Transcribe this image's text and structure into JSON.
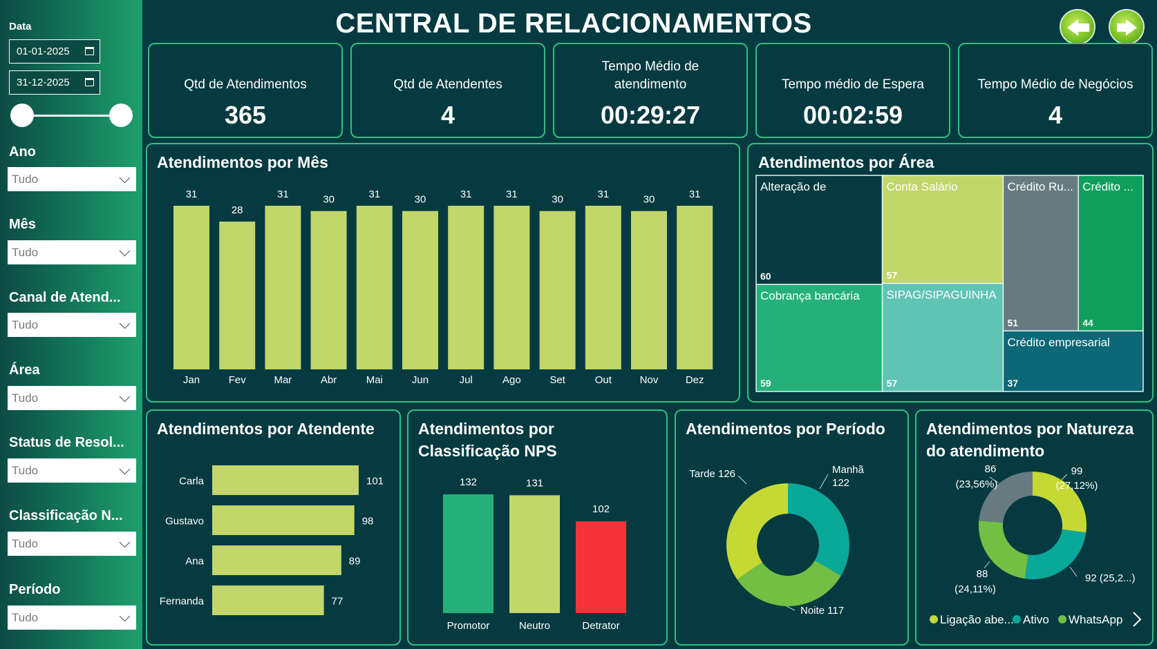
{
  "header": {
    "title": "CENTRAL DE RELACIONAMENTOS"
  },
  "sidebar": {
    "date_label": "Data",
    "date_start": "01-01-2025",
    "date_end": "31-12-2025",
    "filters": [
      {
        "label": "Ano",
        "value": "Tudo"
      },
      {
        "label": "Mês",
        "value": "Tudo"
      },
      {
        "label": "Canal de Atend...",
        "value": "Tudo"
      },
      {
        "label": "Área",
        "value": "Tudo"
      },
      {
        "label": "Status de Resol...",
        "value": "Tudo"
      },
      {
        "label": "Classificação N...",
        "value": "Tudo"
      },
      {
        "label": "Período",
        "value": "Tudo"
      }
    ]
  },
  "kpis": [
    {
      "label": "Qtd de Atendimentos",
      "value": "365"
    },
    {
      "label": "Qtd de Atendentes",
      "value": "4"
    },
    {
      "label": "Tempo Médio de atendimento",
      "value": "00:29:27"
    },
    {
      "label": "Tempo médio de Espera",
      "value": "00:02:59"
    },
    {
      "label": "Tempo Médio de Negócios",
      "value": "4"
    }
  ],
  "colors": {
    "bar": "#c2d66b",
    "panel_border": "#2fbf82",
    "promotor": "#25b07a",
    "neutro": "#c2d66b",
    "detrator": "#f53237",
    "teal": "#0aa89a",
    "green": "#72bf44",
    "lime": "#c5d935",
    "gray": "#667b7f"
  },
  "chart_data": [
    {
      "type": "bar",
      "title": "Atendimentos por Mês",
      "categories": [
        "Jan",
        "Fev",
        "Mar",
        "Abr",
        "Mai",
        "Jun",
        "Jul",
        "Ago",
        "Set",
        "Out",
        "Nov",
        "Dez"
      ],
      "values": [
        31,
        28,
        31,
        30,
        31,
        30,
        31,
        31,
        30,
        31,
        30,
        31
      ],
      "ylim": [
        0,
        31
      ]
    },
    {
      "type": "treemap",
      "title": "Atendimentos por Área",
      "items": [
        {
          "label": "Alteração de",
          "value": 60,
          "color": "#053a40"
        },
        {
          "label": "Cobrança bancária",
          "value": 59,
          "color": "#25b07a"
        },
        {
          "label": "Conta Salário",
          "value": 57,
          "color": "#c2d66b"
        },
        {
          "label": "SIPAG/SIPAGUINHA",
          "value": 57,
          "color": "#5fc4b4"
        },
        {
          "label": "Crédito Ru...",
          "value": 51,
          "color": "#667b7f"
        },
        {
          "label": "Crédito ...",
          "value": 44,
          "color": "#0e9f5c"
        },
        {
          "label": "Crédito empresarial",
          "value": 37,
          "color": "#0c6776"
        }
      ]
    },
    {
      "type": "bar",
      "orientation": "horizontal",
      "title": "Atendimentos por Atendente",
      "categories": [
        "Carla",
        "Gustavo",
        "Ana",
        "Fernanda"
      ],
      "values": [
        101,
        98,
        89,
        77
      ],
      "xlim": [
        0,
        101
      ]
    },
    {
      "type": "bar",
      "title": "Atendimentos por Classificação NPS",
      "categories": [
        "Promotor",
        "Neutro",
        "Detrator"
      ],
      "values": [
        132,
        131,
        102
      ],
      "ylim": [
        0,
        132
      ]
    },
    {
      "type": "pie",
      "title": "Atendimentos por Período",
      "slices": [
        {
          "label": "Manhã",
          "value": 122,
          "color": "#0aa89a"
        },
        {
          "label": "Noite",
          "value": 117,
          "color": "#72bf44"
        },
        {
          "label": "Tarde",
          "value": 126,
          "color": "#c5d935"
        }
      ],
      "labels": [
        {
          "l1": "Manhã",
          "l2": "122"
        },
        {
          "l1": "Noite 117"
        },
        {
          "l1": "Tarde 126"
        }
      ]
    },
    {
      "type": "pie",
      "title": "Atendimentos por Natureza do atendimento",
      "slices": [
        {
          "label": "Ligação abe...",
          "value": 99,
          "color": "#c5d935"
        },
        {
          "label": "Ativo",
          "value": 92,
          "color": "#0aa89a"
        },
        {
          "label": "WhatsApp",
          "value": 88,
          "color": "#72bf44"
        },
        {
          "value": 86,
          "color": "#667b7f"
        }
      ],
      "labels": [
        {
          "l1": "99",
          "l2": "(27,12%)"
        },
        {
          "l1": "92 (25,2...)"
        },
        {
          "l1": "88",
          "l2": "(24,11%)"
        },
        {
          "l1": "86",
          "l2": "(23,56%)"
        }
      ],
      "legend": [
        "Ligação abe...",
        "Ativo",
        "WhatsApp"
      ]
    }
  ]
}
